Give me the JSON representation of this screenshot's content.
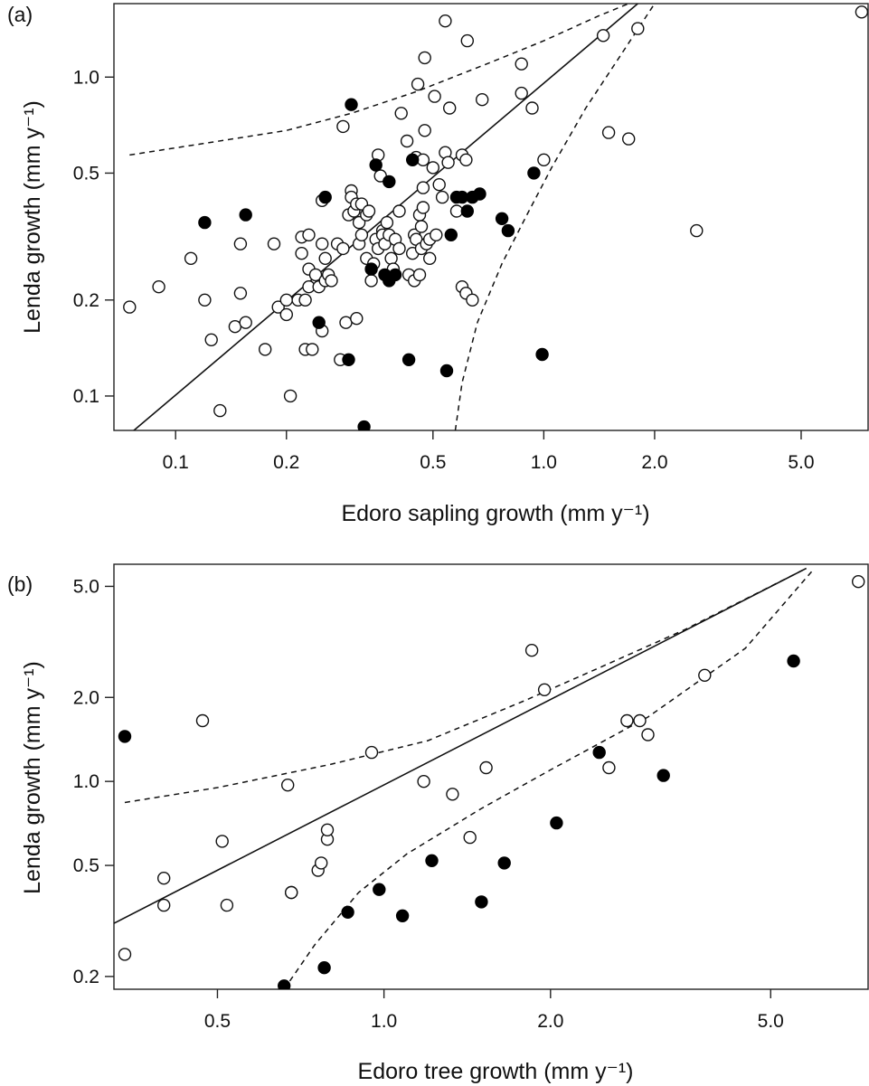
{
  "chart_data": [
    {
      "panel": "(a)",
      "type": "scatter",
      "xlabel": "Edoro sapling growth (mm y⁻¹)",
      "ylabel": "Lenda growth (mm y⁻¹)",
      "x_scale": "log",
      "y_scale": "log",
      "xlim": [
        0.068,
        7.6
      ],
      "ylim": [
        0.078,
        1.7
      ],
      "xticks": [
        0.1,
        0.2,
        0.5,
        1.0,
        2.0,
        5.0
      ],
      "xtick_labels": [
        "0.1",
        "0.2",
        "0.5",
        "1.0",
        "2.0",
        "5.0"
      ],
      "yticks": [
        0.1,
        0.2,
        0.5,
        1.0
      ],
      "ytick_labels": [
        "0.1",
        "0.2",
        "0.5",
        "1.0"
      ],
      "series": [
        {
          "marker": "open-circle",
          "points": [
            [
              0.075,
              0.19
            ],
            [
              0.09,
              0.22
            ],
            [
              0.11,
              0.27
            ],
            [
              0.12,
              0.2
            ],
            [
              0.125,
              0.15
            ],
            [
              0.132,
              0.09
            ],
            [
              0.145,
              0.165
            ],
            [
              0.15,
              0.3
            ],
            [
              0.15,
              0.21
            ],
            [
              0.155,
              0.17
            ],
            [
              0.175,
              0.14
            ],
            [
              0.185,
              0.3
            ],
            [
              0.19,
              0.19
            ],
            [
              0.2,
              0.2
            ],
            [
              0.2,
              0.18
            ],
            [
              0.205,
              0.1
            ],
            [
              0.215,
              0.2
            ],
            [
              0.22,
              0.315
            ],
            [
              0.22,
              0.28
            ],
            [
              0.225,
              0.2
            ],
            [
              0.225,
              0.14
            ],
            [
              0.23,
              0.22
            ],
            [
              0.23,
              0.32
            ],
            [
              0.23,
              0.25
            ],
            [
              0.235,
              0.14
            ],
            [
              0.24,
              0.24
            ],
            [
              0.245,
              0.22
            ],
            [
              0.25,
              0.3
            ],
            [
              0.25,
              0.16
            ],
            [
              0.25,
              0.41
            ],
            [
              0.255,
              0.23
            ],
            [
              0.255,
              0.27
            ],
            [
              0.26,
              0.24
            ],
            [
              0.265,
              0.23
            ],
            [
              0.275,
              0.3
            ],
            [
              0.28,
              0.13
            ],
            [
              0.285,
              0.7
            ],
            [
              0.285,
              0.29
            ],
            [
              0.29,
              0.17
            ],
            [
              0.295,
              0.37
            ],
            [
              0.3,
              0.44
            ],
            [
              0.3,
              0.42
            ],
            [
              0.305,
              0.38
            ],
            [
              0.31,
              0.4
            ],
            [
              0.31,
              0.175
            ],
            [
              0.315,
              0.3
            ],
            [
              0.315,
              0.35
            ],
            [
              0.32,
              0.32
            ],
            [
              0.32,
              0.4
            ],
            [
              0.33,
              0.27
            ],
            [
              0.33,
              0.37
            ],
            [
              0.335,
              0.38
            ],
            [
              0.34,
              0.23
            ],
            [
              0.345,
              0.26
            ],
            [
              0.35,
              0.31
            ],
            [
              0.355,
              0.29
            ],
            [
              0.355,
              0.57
            ],
            [
              0.36,
              0.49
            ],
            [
              0.365,
              0.33
            ],
            [
              0.365,
              0.32
            ],
            [
              0.37,
              0.3
            ],
            [
              0.375,
              0.35
            ],
            [
              0.38,
              0.32
            ],
            [
              0.385,
              0.27
            ],
            [
              0.39,
              0.25
            ],
            [
              0.395,
              0.31
            ],
            [
              0.405,
              0.29
            ],
            [
              0.405,
              0.38
            ],
            [
              0.41,
              0.77
            ],
            [
              0.425,
              0.63
            ],
            [
              0.43,
              0.24
            ],
            [
              0.44,
              0.28
            ],
            [
              0.445,
              0.32
            ],
            [
              0.445,
              0.23
            ],
            [
              0.45,
              0.56
            ],
            [
              0.45,
              0.31
            ],
            [
              0.455,
              0.95
            ],
            [
              0.46,
              0.37
            ],
            [
              0.46,
              0.24
            ],
            [
              0.465,
              0.34
            ],
            [
              0.465,
              0.29
            ],
            [
              0.47,
              0.39
            ],
            [
              0.47,
              0.55
            ],
            [
              0.47,
              0.45
            ],
            [
              0.475,
              0.68
            ],
            [
              0.475,
              1.15
            ],
            [
              0.48,
              0.3
            ],
            [
              0.49,
              0.31
            ],
            [
              0.49,
              0.27
            ],
            [
              0.5,
              0.52
            ],
            [
              0.505,
              0.87
            ],
            [
              0.51,
              0.32
            ],
            [
              0.52,
              0.46
            ],
            [
              0.53,
              0.42
            ],
            [
              0.54,
              0.58
            ],
            [
              0.54,
              1.5
            ],
            [
              0.55,
              0.54
            ],
            [
              0.555,
              0.8
            ],
            [
              0.58,
              0.38
            ],
            [
              0.6,
              0.57
            ],
            [
              0.6,
              0.22
            ],
            [
              0.615,
              0.55
            ],
            [
              0.615,
              0.21
            ],
            [
              0.62,
              1.3
            ],
            [
              0.64,
              0.2
            ],
            [
              0.68,
              0.85
            ],
            [
              0.87,
              1.1
            ],
            [
              0.87,
              0.89
            ],
            [
              0.93,
              0.8
            ],
            [
              1.0,
              0.55
            ],
            [
              1.45,
              1.35
            ],
            [
              1.5,
              0.67
            ],
            [
              1.7,
              0.64
            ],
            [
              1.8,
              1.42
            ],
            [
              2.6,
              0.33
            ],
            [
              7.3,
              1.6
            ]
          ]
        },
        {
          "marker": "filled-circle",
          "points": [
            [
              0.12,
              0.35
            ],
            [
              0.155,
              0.37
            ],
            [
              0.245,
              0.17
            ],
            [
              0.255,
              0.42
            ],
            [
              0.295,
              0.13
            ],
            [
              0.3,
              0.82
            ],
            [
              0.325,
              0.08
            ],
            [
              0.34,
              0.25
            ],
            [
              0.35,
              0.53
            ],
            [
              0.37,
              0.24
            ],
            [
              0.38,
              0.23
            ],
            [
              0.38,
              0.47
            ],
            [
              0.395,
              0.24
            ],
            [
              0.43,
              0.13
            ],
            [
              0.44,
              0.55
            ],
            [
              0.545,
              0.12
            ],
            [
              0.56,
              0.32
            ],
            [
              0.58,
              0.42
            ],
            [
              0.6,
              0.42
            ],
            [
              0.62,
              0.38
            ],
            [
              0.64,
              0.42
            ],
            [
              0.67,
              0.43
            ],
            [
              0.77,
              0.36
            ],
            [
              0.8,
              0.33
            ],
            [
              0.94,
              0.5
            ],
            [
              0.99,
              0.135
            ]
          ]
        }
      ],
      "fit_line": {
        "x": [
          0.075,
          1.8
        ],
        "y": [
          0.076,
          1.7
        ]
      },
      "ci_upper": {
        "x": [
          0.075,
          0.12,
          0.2,
          0.3,
          0.45,
          0.7,
          1.0,
          1.4,
          1.7
        ],
        "y": [
          0.57,
          0.62,
          0.68,
          0.77,
          0.9,
          1.1,
          1.3,
          1.55,
          1.7
        ]
      },
      "ci_lower": {
        "x": [
          0.575,
          0.6,
          0.66,
          0.77,
          0.9,
          1.05,
          1.3,
          1.6,
          2.0
        ],
        "y": [
          0.078,
          0.11,
          0.17,
          0.26,
          0.37,
          0.52,
          0.8,
          1.15,
          1.7
        ]
      }
    },
    {
      "panel": "(b)",
      "type": "scatter",
      "xlabel": "Edoro tree growth (mm y⁻¹)",
      "ylabel": "Lenda growth (mm y⁻¹)",
      "x_scale": "log",
      "y_scale": "log",
      "xlim": [
        0.325,
        7.5
      ],
      "ylim": [
        0.18,
        6.0
      ],
      "xticks": [
        0.5,
        1.0,
        2.0,
        5.0
      ],
      "xtick_labels": [
        "0.5",
        "1.0",
        "2.0",
        "5.0"
      ],
      "yticks": [
        0.2,
        0.5,
        1.0,
        2.0,
        5.0
      ],
      "ytick_labels": [
        "0.2",
        "0.5",
        "1.0",
        "2.0",
        "5.0"
      ],
      "series": [
        {
          "marker": "open-circle",
          "points": [
            [
              0.34,
              0.24
            ],
            [
              0.4,
              0.45
            ],
            [
              0.4,
              0.36
            ],
            [
              0.47,
              1.65
            ],
            [
              0.51,
              0.61
            ],
            [
              0.52,
              0.36
            ],
            [
              0.67,
              0.97
            ],
            [
              0.68,
              0.4
            ],
            [
              0.68,
              0.4
            ],
            [
              0.76,
              0.48
            ],
            [
              0.77,
              0.51
            ],
            [
              0.79,
              0.62
            ],
            [
              0.79,
              0.67
            ],
            [
              0.95,
              1.27
            ],
            [
              1.18,
              1.0
            ],
            [
              1.33,
              0.9
            ],
            [
              1.43,
              0.63
            ],
            [
              1.53,
              1.12
            ],
            [
              1.85,
              2.95
            ],
            [
              1.95,
              2.13
            ],
            [
              2.55,
              1.12
            ],
            [
              2.75,
              1.65
            ],
            [
              2.9,
              1.65
            ],
            [
              3.0,
              1.47
            ],
            [
              3.8,
              2.4
            ],
            [
              7.2,
              5.2
            ]
          ]
        },
        {
          "marker": "filled-circle",
          "points": [
            [
              0.34,
              1.45
            ],
            [
              0.66,
              0.185
            ],
            [
              0.78,
              0.215
            ],
            [
              0.86,
              0.34
            ],
            [
              0.98,
              0.41
            ],
            [
              1.08,
              0.33
            ],
            [
              1.22,
              0.52
            ],
            [
              1.5,
              0.37
            ],
            [
              1.65,
              0.51
            ],
            [
              2.05,
              0.71
            ],
            [
              2.45,
              1.27
            ],
            [
              3.2,
              1.05
            ],
            [
              5.5,
              2.7
            ]
          ]
        }
      ],
      "fit_line": {
        "x": [
          0.325,
          5.8
        ],
        "y": [
          0.31,
          5.8
        ]
      },
      "ci_upper": {
        "x": [
          0.34,
          0.5,
          0.8,
          1.2,
          1.8,
          2.5,
          3.5,
          5.0,
          5.8
        ],
        "y": [
          0.84,
          0.95,
          1.15,
          1.4,
          1.95,
          2.6,
          3.5,
          5.0,
          5.8
        ]
      },
      "ci_lower": {
        "x": [
          0.66,
          0.75,
          0.9,
          1.1,
          1.5,
          2.0,
          3.0,
          4.5,
          6.0
        ],
        "y": [
          0.18,
          0.26,
          0.4,
          0.55,
          0.8,
          1.1,
          1.7,
          3.0,
          5.8
        ]
      }
    }
  ]
}
